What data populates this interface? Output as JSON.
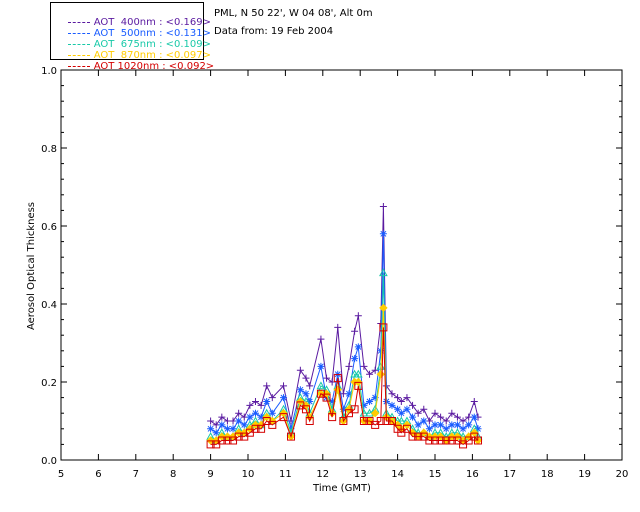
{
  "header": {
    "station": "PML, N 50 22', W 04 08', Alt 0m",
    "date_line": "Data from: 19 Feb 2004"
  },
  "legend": [
    {
      "label": "AOT  400nm : <0.169>",
      "color": "#5a1aa0"
    },
    {
      "label": "AOT  500nm : <0.131>",
      "color": "#1a5cff"
    },
    {
      "label": "AOT  675nm : <0.109>",
      "color": "#19c9a8"
    },
    {
      "label": "AOT  870nm : <0.097>",
      "color": "#ffcc00"
    },
    {
      "label": "AOT 1020nm : <0.092>",
      "color": "#d40000"
    }
  ],
  "chart_data": {
    "type": "line",
    "xlabel": "Time (GMT)",
    "ylabel": "Aerosol Optical Thickness",
    "xlim": [
      5,
      20
    ],
    "ylim": [
      0.0,
      1.0
    ],
    "xticks": [
      5,
      6,
      7,
      8,
      9,
      10,
      11,
      12,
      13,
      14,
      15,
      16,
      17,
      18,
      19,
      20
    ],
    "yticks": [
      0.0,
      0.2,
      0.4,
      0.6,
      0.8,
      1.0
    ],
    "x": [
      9.0,
      9.15,
      9.3,
      9.45,
      9.6,
      9.75,
      9.9,
      10.05,
      10.2,
      10.35,
      10.5,
      10.65,
      10.95,
      11.15,
      11.4,
      11.55,
      11.65,
      11.95,
      12.1,
      12.25,
      12.4,
      12.55,
      12.7,
      12.85,
      12.95,
      13.1,
      13.25,
      13.4,
      13.55,
      13.62,
      13.7,
      13.85,
      14.0,
      14.1,
      14.25,
      14.4,
      14.55,
      14.7,
      14.85,
      15.0,
      15.15,
      15.3,
      15.45,
      15.6,
      15.75,
      15.9,
      16.05,
      16.15
    ],
    "series": [
      {
        "name": "AOT  400nm",
        "color": "#5a1aa0",
        "marker": "plus",
        "values": [
          0.1,
          0.09,
          0.11,
          0.1,
          0.1,
          0.12,
          0.11,
          0.14,
          0.15,
          0.14,
          0.19,
          0.16,
          0.19,
          0.1,
          0.23,
          0.21,
          0.19,
          0.31,
          0.21,
          0.2,
          0.34,
          0.17,
          0.24,
          0.33,
          0.37,
          0.24,
          0.22,
          0.23,
          0.35,
          0.65,
          0.19,
          0.17,
          0.16,
          0.15,
          0.16,
          0.14,
          0.12,
          0.13,
          0.1,
          0.12,
          0.11,
          0.1,
          0.12,
          0.11,
          0.1,
          0.11,
          0.15,
          0.11
        ]
      },
      {
        "name": "AOT  500nm",
        "color": "#1a5cff",
        "marker": "asterisk",
        "values": [
          0.08,
          0.07,
          0.09,
          0.08,
          0.08,
          0.1,
          0.09,
          0.11,
          0.12,
          0.11,
          0.15,
          0.12,
          0.16,
          0.08,
          0.18,
          0.17,
          0.15,
          0.24,
          0.16,
          0.15,
          0.22,
          0.13,
          0.17,
          0.26,
          0.29,
          0.14,
          0.15,
          0.16,
          0.28,
          0.58,
          0.15,
          0.14,
          0.13,
          0.12,
          0.13,
          0.11,
          0.09,
          0.1,
          0.08,
          0.09,
          0.09,
          0.08,
          0.09,
          0.09,
          0.08,
          0.09,
          0.11,
          0.08
        ]
      },
      {
        "name": "AOT  675nm",
        "color": "#19c9a8",
        "marker": "triangle",
        "values": [
          0.06,
          0.05,
          0.07,
          0.06,
          0.06,
          0.08,
          0.07,
          0.09,
          0.1,
          0.09,
          0.12,
          0.1,
          0.13,
          0.07,
          0.16,
          0.15,
          0.12,
          0.19,
          0.18,
          0.13,
          0.19,
          0.11,
          0.14,
          0.22,
          0.22,
          0.12,
          0.12,
          0.13,
          0.24,
          0.48,
          0.12,
          0.11,
          0.1,
          0.1,
          0.1,
          0.08,
          0.07,
          0.07,
          0.06,
          0.07,
          0.07,
          0.06,
          0.07,
          0.07,
          0.06,
          0.06,
          0.08,
          0.06
        ]
      },
      {
        "name": "AOT  870nm",
        "color": "#ffcc00",
        "marker": "diamond",
        "values": [
          0.05,
          0.05,
          0.06,
          0.06,
          0.06,
          0.07,
          0.07,
          0.08,
          0.09,
          0.09,
          0.11,
          0.1,
          0.12,
          0.06,
          0.15,
          0.14,
          0.11,
          0.17,
          0.17,
          0.12,
          0.18,
          0.1,
          0.13,
          0.2,
          0.2,
          0.1,
          0.1,
          0.12,
          0.22,
          0.39,
          0.11,
          0.1,
          0.09,
          0.08,
          0.09,
          0.07,
          0.06,
          0.07,
          0.06,
          0.06,
          0.06,
          0.05,
          0.06,
          0.06,
          0.05,
          0.06,
          0.07,
          0.05
        ]
      },
      {
        "name": "AOT 1020nm",
        "color": "#d40000",
        "marker": "square",
        "values": [
          0.04,
          0.04,
          0.05,
          0.05,
          0.05,
          0.06,
          0.06,
          0.07,
          0.08,
          0.08,
          0.1,
          0.09,
          0.11,
          0.06,
          0.14,
          0.13,
          0.1,
          0.17,
          0.16,
          0.11,
          0.21,
          0.1,
          0.12,
          0.13,
          0.19,
          0.1,
          0.1,
          0.09,
          0.1,
          0.34,
          0.1,
          0.1,
          0.08,
          0.07,
          0.08,
          0.06,
          0.06,
          0.06,
          0.05,
          0.05,
          0.05,
          0.05,
          0.05,
          0.05,
          0.04,
          0.05,
          0.06,
          0.05
        ]
      }
    ]
  }
}
